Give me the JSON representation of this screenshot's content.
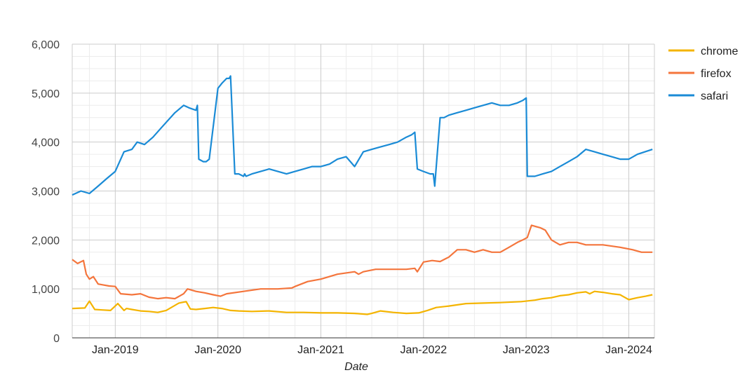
{
  "chart_data": {
    "type": "line",
    "title": "",
    "xlabel": "Date",
    "ylabel": "",
    "xlim": [
      "2018-08-01",
      "2024-04-01"
    ],
    "ylim": [
      0,
      6000
    ],
    "y_ticks": [
      0,
      1000,
      2000,
      3000,
      4000,
      5000,
      6000
    ],
    "y_tick_labels": [
      "0",
      "1,000",
      "2,000",
      "3,000",
      "4,000",
      "5,000",
      "6,000"
    ],
    "x_ticks": [
      "2019-01-01",
      "2020-01-01",
      "2021-01-01",
      "2022-01-01",
      "2023-01-01",
      "2024-01-01"
    ],
    "x_tick_labels": [
      "Jan-2019",
      "Jan-2020",
      "Jan-2021",
      "Jan-2022",
      "Jan-2023",
      "Jan-2024"
    ],
    "grid": true,
    "legend": "right",
    "series": [
      {
        "name": "chrome",
        "color": "#F4B400",
        "x": [
          "2018-08-01",
          "2018-09-15",
          "2018-10-01",
          "2018-10-20",
          "2018-11-15",
          "2018-12-15",
          "2019-01-10",
          "2019-02-01",
          "2019-02-10",
          "2019-03-01",
          "2019-04-01",
          "2019-05-01",
          "2019-06-01",
          "2019-07-01",
          "2019-08-15",
          "2019-09-10",
          "2019-09-25",
          "2019-10-15",
          "2019-11-15",
          "2019-12-15",
          "2020-01-15",
          "2020-02-15",
          "2020-03-15",
          "2020-05-01",
          "2020-07-01",
          "2020-09-01",
          "2020-11-01",
          "2021-01-01",
          "2021-03-01",
          "2021-05-01",
          "2021-06-15",
          "2021-07-01",
          "2021-08-01",
          "2021-09-15",
          "2021-11-01",
          "2021-12-15",
          "2022-01-15",
          "2022-02-15",
          "2022-04-01",
          "2022-06-01",
          "2022-08-01",
          "2022-10-01",
          "2022-12-15",
          "2023-02-01",
          "2023-03-01",
          "2023-04-01",
          "2023-05-01",
          "2023-06-01",
          "2023-07-01",
          "2023-08-01",
          "2023-08-15",
          "2023-09-01",
          "2023-10-01",
          "2023-11-01",
          "2023-12-01",
          "2024-01-01",
          "2024-02-01",
          "2024-03-01",
          "2024-03-25"
        ],
        "values": [
          600,
          610,
          750,
          580,
          570,
          560,
          700,
          560,
          600,
          580,
          550,
          540,
          520,
          560,
          710,
          740,
          590,
          580,
          600,
          620,
          600,
          560,
          550,
          540,
          550,
          520,
          520,
          510,
          510,
          500,
          480,
          500,
          550,
          520,
          500,
          510,
          560,
          620,
          650,
          700,
          710,
          720,
          740,
          770,
          800,
          820,
          860,
          880,
          920,
          940,
          900,
          950,
          930,
          900,
          880,
          780,
          820,
          850,
          880
        ]
      },
      {
        "name": "firefox",
        "color": "#F4753C",
        "x": [
          "2018-08-01",
          "2018-08-20",
          "2018-09-10",
          "2018-09-20",
          "2018-10-01",
          "2018-10-15",
          "2018-11-01",
          "2018-11-20",
          "2018-12-10",
          "2019-01-01",
          "2019-01-20",
          "2019-03-01",
          "2019-04-01",
          "2019-05-01",
          "2019-06-01",
          "2019-07-01",
          "2019-08-01",
          "2019-09-01",
          "2019-09-15",
          "2019-10-15",
          "2019-11-15",
          "2019-12-15",
          "2020-01-10",
          "2020-02-01",
          "2020-04-01",
          "2020-06-01",
          "2020-08-01",
          "2020-09-20",
          "2020-10-01",
          "2020-11-15",
          "2021-01-01",
          "2021-03-01",
          "2021-05-01",
          "2021-05-15",
          "2021-06-01",
          "2021-07-15",
          "2021-09-01",
          "2021-11-01",
          "2021-12-01",
          "2021-12-10",
          "2022-01-01",
          "2022-02-01",
          "2022-03-01",
          "2022-04-01",
          "2022-05-01",
          "2022-06-01",
          "2022-07-01",
          "2022-08-01",
          "2022-09-01",
          "2022-10-01",
          "2022-11-01",
          "2022-12-01",
          "2022-12-20",
          "2023-01-05",
          "2023-01-20",
          "2023-02-20",
          "2023-03-10",
          "2023-04-01",
          "2023-05-01",
          "2023-06-01",
          "2023-07-01",
          "2023-08-01",
          "2023-10-01",
          "2023-12-01",
          "2024-01-15",
          "2024-02-15",
          "2024-03-25"
        ],
        "values": [
          1600,
          1520,
          1580,
          1300,
          1200,
          1250,
          1100,
          1080,
          1060,
          1050,
          900,
          880,
          900,
          830,
          800,
          820,
          800,
          900,
          1000,
          950,
          920,
          880,
          850,
          900,
          950,
          1000,
          1000,
          1020,
          1050,
          1150,
          1200,
          1300,
          1350,
          1300,
          1350,
          1400,
          1400,
          1400,
          1420,
          1350,
          1550,
          1580,
          1560,
          1650,
          1800,
          1800,
          1750,
          1800,
          1750,
          1750,
          1850,
          1950,
          2000,
          2050,
          2300,
          2250,
          2200,
          2000,
          1900,
          1950,
          1950,
          1900,
          1900,
          1850,
          1800,
          1750,
          1750
        ]
      },
      {
        "name": "safari",
        "color": "#1A8BD6",
        "x": [
          "2018-08-01",
          "2018-09-01",
          "2018-10-01",
          "2018-11-01",
          "2018-12-01",
          "2019-01-01",
          "2019-02-01",
          "2019-03-01",
          "2019-03-20",
          "2019-04-15",
          "2019-05-15",
          "2019-06-15",
          "2019-08-01",
          "2019-09-01",
          "2019-09-20",
          "2019-10-15",
          "2019-10-20",
          "2019-10-25",
          "2019-11-10",
          "2019-11-20",
          "2019-12-01",
          "2020-01-01",
          "2020-01-15",
          "2020-02-01",
          "2020-02-10",
          "2020-02-15",
          "2020-03-01",
          "2020-03-15",
          "2020-04-01",
          "2020-04-05",
          "2020-04-10",
          "2020-05-01",
          "2020-06-01",
          "2020-07-01",
          "2020-08-01",
          "2020-09-01",
          "2020-10-01",
          "2020-11-01",
          "2020-12-01",
          "2021-01-01",
          "2021-02-01",
          "2021-03-01",
          "2021-04-01",
          "2021-05-01",
          "2021-06-01",
          "2021-07-01",
          "2021-08-01",
          "2021-09-01",
          "2021-10-01",
          "2021-11-01",
          "2021-11-20",
          "2021-12-01",
          "2021-12-10",
          "2022-01-01",
          "2022-01-25",
          "2022-02-05",
          "2022-02-10",
          "2022-03-01",
          "2022-03-15",
          "2022-04-01",
          "2022-05-01",
          "2022-06-01",
          "2022-07-01",
          "2022-08-01",
          "2022-09-01",
          "2022-10-01",
          "2022-11-01",
          "2022-12-01",
          "2022-12-20",
          "2023-01-01",
          "2023-01-05",
          "2023-02-01",
          "2023-03-01",
          "2023-04-01",
          "2023-05-01",
          "2023-06-01",
          "2023-07-01",
          "2023-08-01",
          "2023-09-01",
          "2023-10-01",
          "2023-11-01",
          "2023-12-01",
          "2024-01-01",
          "2024-02-01",
          "2024-03-25"
        ],
        "values": [
          2920,
          3000,
          2950,
          3100,
          3250,
          3400,
          3800,
          3850,
          4000,
          3950,
          4100,
          4300,
          4600,
          4750,
          4700,
          4650,
          4750,
          3650,
          3600,
          3600,
          3650,
          5100,
          5200,
          5300,
          5300,
          5350,
          3350,
          3350,
          3300,
          3350,
          3300,
          3350,
          3400,
          3450,
          3400,
          3350,
          3400,
          3450,
          3500,
          3500,
          3550,
          3650,
          3700,
          3500,
          3800,
          3850,
          3900,
          3950,
          4000,
          4100,
          4150,
          4200,
          3450,
          3400,
          3350,
          3350,
          3100,
          4500,
          4500,
          4550,
          4600,
          4650,
          4700,
          4750,
          4800,
          4750,
          4750,
          4800,
          4850,
          4900,
          3300,
          3300,
          3350,
          3400,
          3500,
          3600,
          3700,
          3850,
          3800,
          3750,
          3700,
          3650,
          3650,
          3750,
          3850
        ]
      }
    ]
  }
}
